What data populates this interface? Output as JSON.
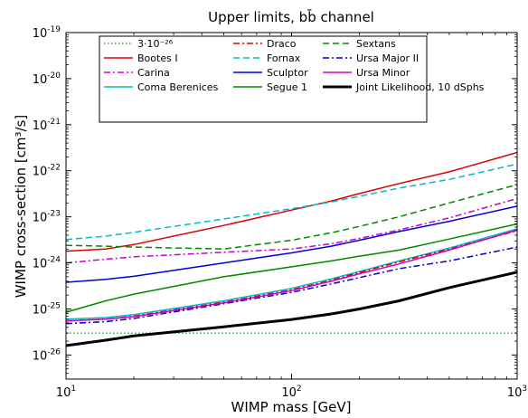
{
  "chart_data": {
    "type": "line",
    "title": "Upper limits, bb̄ channel",
    "xlabel": "WIMP mass [GeV]",
    "ylabel": "WIMP cross-section [cm³/s]",
    "xscale": "log",
    "yscale": "log",
    "xlim": [
      10,
      1000
    ],
    "ylim": [
      3e-27,
      1e-19
    ],
    "x_ticks": [
      {
        "value": 10,
        "base": "10",
        "exp": "1"
      },
      {
        "value": 100,
        "base": "10",
        "exp": "2"
      },
      {
        "value": 1000,
        "base": "10",
        "exp": "3"
      }
    ],
    "y_ticks": [
      {
        "value": 1e-26,
        "base": "10",
        "exp": "-26"
      },
      {
        "value": 1e-25,
        "base": "10",
        "exp": "-25"
      },
      {
        "value": 1e-24,
        "base": "10",
        "exp": "-24"
      },
      {
        "value": 1e-23,
        "base": "10",
        "exp": "-23"
      },
      {
        "value": 1e-22,
        "base": "10",
        "exp": "-22"
      },
      {
        "value": 1e-21,
        "base": "10",
        "exp": "-21"
      },
      {
        "value": 1e-20,
        "base": "10",
        "exp": "-20"
      },
      {
        "value": 1e-19,
        "base": "10",
        "exp": "-19"
      }
    ],
    "grid": false,
    "legend_position": "top",
    "legend_columns": 3,
    "x": [
      10,
      15,
      20,
      50,
      100,
      150,
      200,
      300,
      500,
      1000
    ],
    "series": [
      {
        "name": "3·10⁻²⁶",
        "color": "#009900",
        "dash": "dotted",
        "width": 1.2,
        "values": [
          3e-26,
          3e-26,
          3e-26,
          3e-26,
          3e-26,
          3e-26,
          3e-26,
          3e-26,
          3e-26,
          3e-26
        ]
      },
      {
        "name": "Bootes I",
        "color": "#dd0000",
        "dash": "solid",
        "width": 1.5,
        "values": [
          1.8e-24,
          2e-24,
          2.5e-24,
          6.5e-24,
          1.4e-23,
          2.2e-23,
          3.2e-23,
          5.3e-23,
          9.5e-23,
          2.5e-22
        ]
      },
      {
        "name": "Carina",
        "color": "#cc00cc",
        "dash": "dashdot",
        "width": 1.5,
        "values": [
          1e-24,
          1.2e-24,
          1.35e-24,
          1.7e-24,
          2e-24,
          2.6e-24,
          3.4e-24,
          5.2e-24,
          9.5e-24,
          2.5e-23
        ]
      },
      {
        "name": "Coma Berenices",
        "color": "#00bbbb",
        "dash": "solid",
        "width": 1.5,
        "values": [
          6e-26,
          6.5e-26,
          7.5e-26,
          1.5e-25,
          2.8e-25,
          4.5e-25,
          6.5e-25,
          1.1e-24,
          2.1e-24,
          5.5e-24
        ]
      },
      {
        "name": "Draco",
        "color": "#dd0000",
        "dash": "dashdot",
        "width": 1.5,
        "values": [
          5.5e-26,
          6e-26,
          7e-26,
          1.4e-25,
          2.6e-25,
          4.2e-25,
          6.2e-25,
          1.05e-24,
          2e-24,
          5e-24
        ]
      },
      {
        "name": "Fornax",
        "color": "#00bbcc",
        "dash": "dashed",
        "width": 1.5,
        "values": [
          3.2e-24,
          3.8e-24,
          4.6e-24,
          9e-24,
          1.5e-23,
          2.1e-23,
          2.8e-23,
          4.2e-23,
          6.5e-23,
          1.4e-22
        ]
      },
      {
        "name": "Sculptor",
        "color": "#0000dd",
        "dash": "solid",
        "width": 1.5,
        "values": [
          3.8e-25,
          4.4e-25,
          5.1e-25,
          1e-24,
          1.65e-24,
          2.3e-24,
          3.1e-24,
          4.8e-24,
          8e-24,
          1.7e-23
        ]
      },
      {
        "name": "Segue 1",
        "color": "#008800",
        "dash": "solid",
        "width": 1.5,
        "values": [
          8.5e-26,
          1.5e-25,
          2.1e-25,
          5e-25,
          8.2e-25,
          1.1e-24,
          1.4e-24,
          1.9e-24,
          3.3e-24,
          7e-24
        ]
      },
      {
        "name": "Sextans",
        "color": "#008800",
        "dash": "dashed",
        "width": 1.5,
        "values": [
          2.4e-24,
          2.3e-24,
          2.2e-24,
          2e-24,
          3.1e-24,
          4.5e-24,
          6.2e-24,
          1e-23,
          2e-23,
          5e-23
        ]
      },
      {
        "name": "Ursa Major II",
        "color": "#0000cc",
        "dash": "dashdot",
        "width": 1.5,
        "values": [
          4.8e-26,
          5.3e-26,
          6.2e-26,
          1.3e-25,
          2.3e-25,
          3.5e-25,
          4.8e-25,
          7.5e-25,
          1.1e-24,
          2.2e-24
        ]
      },
      {
        "name": "Ursa Minor",
        "color": "#cc00cc",
        "dash": "solid",
        "width": 1.5,
        "values": [
          5.5e-26,
          6e-26,
          6.8e-26,
          1.35e-25,
          2.5e-25,
          4e-25,
          5.8e-25,
          9.5e-25,
          1.9e-24,
          5.2e-24
        ]
      },
      {
        "name": "Joint Likelihood, 10 dSphs",
        "color": "#000000",
        "dash": "solid",
        "width": 3,
        "values": [
          1.6e-26,
          2.1e-26,
          2.6e-26,
          4.1e-26,
          5.9e-26,
          7.8e-26,
          1e-25,
          1.5e-25,
          2.9e-25,
          6.3e-25
        ]
      }
    ]
  }
}
